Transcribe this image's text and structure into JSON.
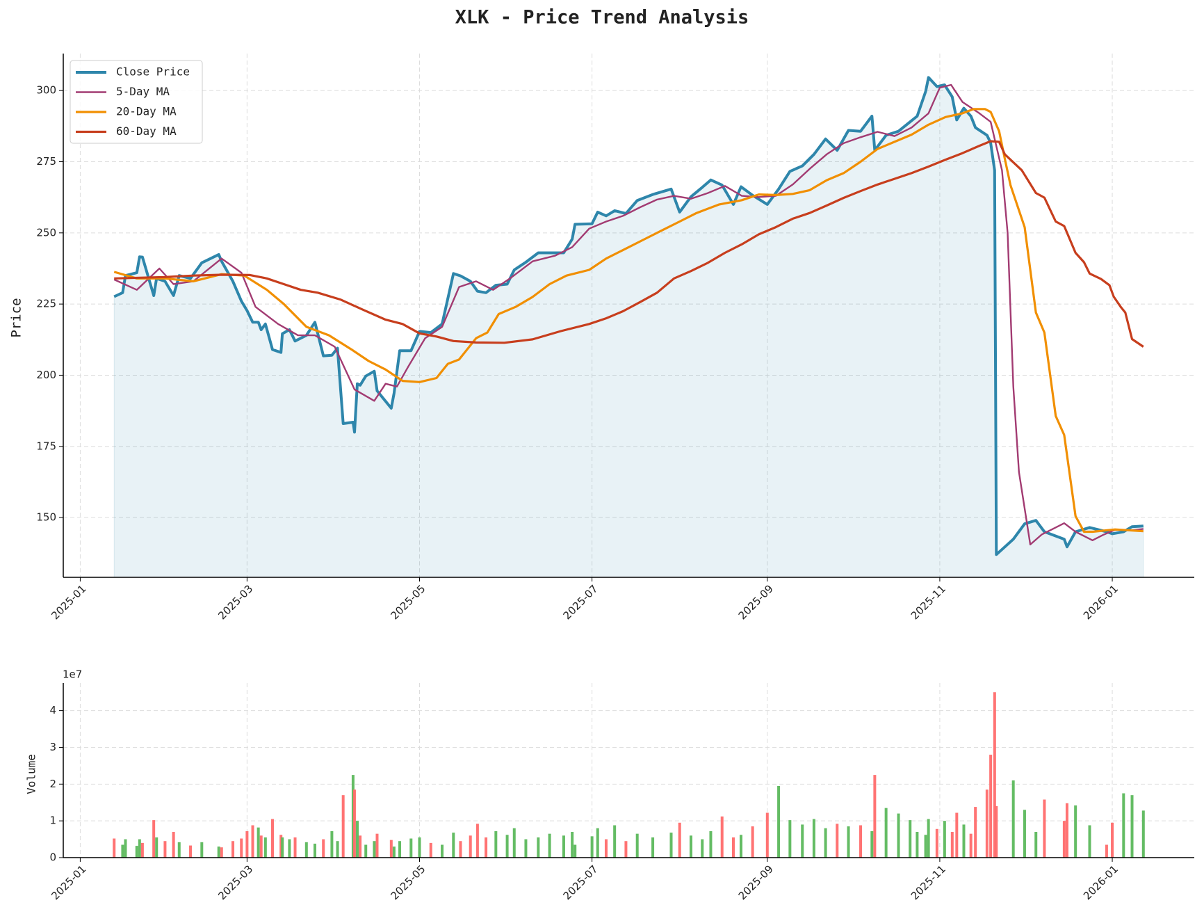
{
  "chart_data": [
    {
      "type": "line",
      "title": "XLK - Price Trend Analysis",
      "y_label": "Price",
      "x": [
        12,
        15,
        16,
        20,
        21,
        22,
        26,
        27,
        30,
        33,
        35,
        39,
        43,
        49,
        50,
        54,
        57,
        59,
        61,
        63,
        64,
        65.5,
        68,
        71,
        71.5,
        74,
        76,
        80,
        83,
        86,
        89,
        91,
        93,
        96.5,
        97,
        98,
        99,
        101,
        104,
        105,
        110,
        111,
        113,
        117,
        120,
        124,
        128,
        132,
        134.5,
        138,
        140.5,
        143.5,
        147,
        151,
        153.5,
        157.6,
        162,
        166,
        171,
        174,
        175,
        181,
        183,
        186,
        189,
        193,
        197,
        202.5,
        209,
        212,
        216,
        220,
        223,
        227,
        231,
        233.7,
        237.8,
        243,
        247,
        251,
        255.4,
        259.5,
        263.6,
        267.7,
        271.7,
        276,
        280,
        281,
        285,
        289.4,
        293.5,
        296,
        299,
        300,
        303,
        305.7,
        308.4,
        310,
        312.5,
        315,
        316.6,
        320.7,
        322,
        323.4,
        324,
        330,
        334,
        338,
        341,
        348,
        349,
        352,
        357,
        363,
        365,
        369,
        372,
        376
      ],
      "xlim": [
        -6,
        394
      ],
      "xticks": [
        {
          "value": 0,
          "label": "2025-01"
        },
        {
          "value": 59,
          "label": "2025-03"
        },
        {
          "value": 120,
          "label": "2025-05"
        },
        {
          "value": 181,
          "label": "2025-07"
        },
        {
          "value": 243,
          "label": "2025-09"
        },
        {
          "value": 304,
          "label": "2025-11"
        },
        {
          "value": 365,
          "label": "2026-01"
        }
      ],
      "ylim": [
        129,
        313
      ],
      "yticks": [
        150,
        175,
        200,
        225,
        250,
        275,
        300
      ],
      "grid": true,
      "legend": "upper left",
      "series": [
        {
          "name": "Close Price",
          "color": "#2e86ab",
          "fill": true,
          "values": [
            227.6,
            229,
            235,
            236,
            241.6,
            241.5,
            228,
            234,
            233,
            228,
            235,
            234,
            239.5,
            242.4,
            240,
            233,
            226,
            222.7,
            218.6,
            218.6,
            216,
            218,
            209,
            208,
            214.6,
            216,
            212,
            214,
            218.6,
            206.8,
            207,
            209.5,
            183,
            183.5,
            180,
            197,
            196.5,
            199.7,
            201.4,
            194.5,
            188.4,
            193.7,
            208.6,
            208.6,
            215.4,
            215,
            218,
            235.7,
            234.9,
            233,
            229.5,
            229,
            231.6,
            232,
            237,
            239.7,
            243,
            243,
            243,
            247.8,
            253,
            253.2,
            257.3,
            256,
            257.8,
            256.8,
            261.4,
            263.5,
            265.4,
            257.3,
            262.7,
            266,
            268.6,
            266.8,
            260,
            266.2,
            263.2,
            260,
            265.4,
            271.6,
            273.5,
            277.6,
            283,
            279,
            286,
            285.7,
            291,
            279,
            284.3,
            285.7,
            289,
            291,
            299.7,
            304.6,
            301.4,
            302,
            297.8,
            289.7,
            293.8,
            291,
            287,
            284.3,
            281.6,
            272,
            137,
            142.4,
            147.8,
            149,
            145,
            142.4,
            139.7,
            145,
            146.5,
            145,
            144.3,
            145,
            146.8,
            147
          ]
        },
        {
          "name": "5-Day MA",
          "color": "#a23b72",
          "x": [
            12,
            20,
            28,
            33,
            40,
            50,
            57,
            62,
            70,
            77,
            83,
            90,
            97,
            104,
            108,
            112,
            116,
            122,
            128,
            134,
            140,
            146,
            152,
            160,
            168,
            174,
            180,
            186,
            192,
            198,
            204,
            210,
            216,
            222,
            228,
            234,
            240,
            246,
            252,
            258,
            264,
            270,
            276,
            282,
            288,
            294,
            300,
            304,
            308,
            312,
            318,
            322,
            326,
            328,
            330,
            332,
            336,
            340,
            344,
            348,
            352,
            358,
            362,
            366,
            372,
            376
          ],
          "values": [
            233.6,
            230,
            237.5,
            232,
            233,
            241,
            236,
            224,
            218,
            214,
            214,
            210,
            195,
            191,
            197,
            196,
            203,
            213,
            217,
            231,
            233,
            230,
            234,
            240,
            242,
            245,
            251.5,
            254,
            256,
            259,
            261.7,
            263,
            262,
            264,
            266.5,
            263,
            262.6,
            263,
            267,
            272.5,
            277.6,
            281.5,
            283.6,
            285.5,
            284,
            287,
            292,
            301,
            302,
            296,
            292,
            289,
            272,
            250,
            196,
            166,
            140.5,
            144,
            146,
            148,
            145,
            142,
            144,
            145.7,
            145.5,
            146
          ]
        },
        {
          "name": "20-Day MA",
          "color": "#f18f01",
          "x": [
            12,
            20,
            30,
            40,
            50,
            58,
            66,
            72,
            80,
            88,
            96,
            102,
            108,
            114,
            120,
            126,
            130,
            134,
            140,
            144,
            148,
            154,
            160,
            166,
            172,
            180,
            186,
            192,
            200,
            206,
            212,
            218,
            226,
            234,
            240,
            246,
            252,
            258,
            264,
            270,
            276,
            282,
            288,
            294,
            300,
            306,
            312,
            316,
            320,
            322,
            325,
            327,
            329,
            334,
            338,
            341,
            345,
            348,
            352,
            355,
            358,
            366,
            376
          ],
          "values": [
            236.3,
            234,
            234,
            233,
            235.5,
            235,
            230,
            225,
            217,
            214,
            209,
            205,
            202,
            198,
            197.6,
            199,
            204,
            205.5,
            213,
            215,
            221.5,
            224,
            227.5,
            232,
            235,
            237,
            241,
            244,
            248,
            251,
            254,
            257,
            260,
            261.5,
            263.5,
            263.3,
            263.7,
            265,
            268.5,
            271,
            275,
            279.5,
            282,
            284.5,
            288,
            290.7,
            292,
            293.5,
            293.5,
            292.5,
            285.7,
            276,
            266.8,
            252,
            222,
            215,
            185.7,
            179,
            150.5,
            145,
            145,
            145.8,
            145.2
          ]
        },
        {
          "name": "60-Day MA",
          "color": "#c73e1d",
          "x": [
            12,
            30,
            40,
            50,
            60,
            66,
            72,
            78,
            84,
            92,
            100,
            108,
            114,
            120,
            126,
            132,
            140,
            150,
            160,
            170,
            180,
            186,
            192,
            198,
            204,
            210,
            216,
            222,
            228,
            234,
            240,
            246,
            252,
            258,
            264,
            270,
            276,
            282,
            288,
            294,
            300,
            306,
            312,
            318,
            322,
            325,
            327,
            333,
            338,
            341,
            345,
            348,
            352,
            355,
            357,
            361,
            364,
            365.5,
            368,
            369.6,
            372,
            376
          ],
          "values": [
            234,
            234.5,
            235,
            235.3,
            235.2,
            234,
            232,
            230,
            229,
            226.6,
            223,
            219.5,
            218,
            214.7,
            213.6,
            212,
            211.5,
            211.4,
            212.6,
            215.5,
            218,
            220,
            222.5,
            225.7,
            229,
            234,
            236.6,
            239.5,
            243,
            246,
            249.5,
            252,
            255,
            257,
            259.6,
            262.3,
            264.7,
            267,
            269,
            271,
            273.3,
            275.7,
            278,
            280.6,
            282.2,
            282,
            277.6,
            272,
            264,
            262.4,
            254,
            252.4,
            243,
            239.7,
            235.7,
            233.8,
            231.6,
            227.6,
            224,
            222,
            212.7,
            210
          ]
        }
      ]
    },
    {
      "type": "bar",
      "y_label": "Volume",
      "offset_label": "1e7",
      "x": [
        12,
        15,
        16,
        20,
        21,
        22,
        26,
        27,
        30,
        33,
        35,
        39,
        43,
        49,
        50,
        54,
        57,
        59,
        61,
        63,
        64,
        65.5,
        68,
        71,
        71.5,
        74,
        76,
        80,
        83,
        86,
        89,
        91,
        93,
        96.5,
        97,
        98,
        99,
        101,
        104,
        105,
        110,
        111,
        113,
        117,
        120,
        124,
        128,
        132,
        134.5,
        138,
        140.5,
        143.5,
        147,
        151,
        153.5,
        157.6,
        162,
        166,
        171,
        174,
        175,
        181,
        183,
        186,
        189,
        193,
        197,
        202.5,
        209,
        212,
        216,
        220,
        223,
        227,
        231,
        233.7,
        237.8,
        243,
        247,
        251,
        255.4,
        259.5,
        263.6,
        267.7,
        271.7,
        276,
        280,
        281,
        285,
        289.4,
        293.5,
        296,
        299,
        300,
        303,
        305.7,
        308.4,
        310,
        312.5,
        315,
        316.6,
        320.7,
        322,
        323.4,
        324,
        330,
        334,
        338,
        341,
        348,
        349,
        352,
        357,
        363,
        365,
        369,
        372,
        376
      ],
      "values": [
        0.52,
        0.35,
        0.5,
        0.32,
        0.5,
        0.4,
        1.02,
        0.55,
        0.45,
        0.7,
        0.42,
        0.33,
        0.42,
        0.3,
        0.28,
        0.45,
        0.52,
        0.72,
        0.88,
        0.82,
        0.6,
        0.55,
        1.05,
        0.62,
        0.55,
        0.5,
        0.55,
        0.42,
        0.38,
        0.5,
        0.72,
        0.45,
        1.7,
        2.25,
        1.85,
        1.0,
        0.6,
        0.35,
        0.45,
        0.65,
        0.48,
        0.3,
        0.45,
        0.52,
        0.55,
        0.4,
        0.35,
        0.68,
        0.45,
        0.6,
        0.92,
        0.55,
        0.72,
        0.62,
        0.8,
        0.5,
        0.55,
        0.65,
        0.6,
        0.7,
        0.35,
        0.58,
        0.8,
        0.5,
        0.88,
        0.45,
        0.65,
        0.55,
        0.68,
        0.95,
        0.6,
        0.5,
        0.72,
        1.12,
        0.55,
        0.62,
        0.85,
        1.22,
        1.95,
        1.02,
        0.9,
        1.05,
        0.8,
        0.92,
        0.85,
        0.88,
        0.72,
        2.25,
        1.35,
        1.2,
        1.02,
        0.7,
        0.62,
        1.05,
        0.78,
        1.0,
        0.7,
        1.22,
        0.9,
        0.65,
        1.38,
        1.85,
        2.8,
        4.5,
        1.4,
        2.1,
        1.3,
        0.7,
        1.58,
        1.0,
        1.48,
        1.42,
        0.88,
        0.35,
        0.95,
        1.75,
        1.7,
        1.28
      ],
      "xlim": [
        -6,
        394
      ],
      "xticks": [
        {
          "value": 0,
          "label": "2025-01"
        },
        {
          "value": 59,
          "label": "2025-03"
        },
        {
          "value": 120,
          "label": "2025-05"
        },
        {
          "value": 181,
          "label": "2025-07"
        },
        {
          "value": 243,
          "label": "2025-09"
        },
        {
          "value": 304,
          "label": "2025-11"
        },
        {
          "value": 365,
          "label": "2026-01"
        }
      ],
      "ylim": [
        0,
        4.75
      ],
      "yticks": [
        0,
        1,
        2,
        3,
        4
      ],
      "grid": true,
      "colors": {
        "up": "#5cb85c",
        "down": "#ff6b6b"
      }
    }
  ]
}
